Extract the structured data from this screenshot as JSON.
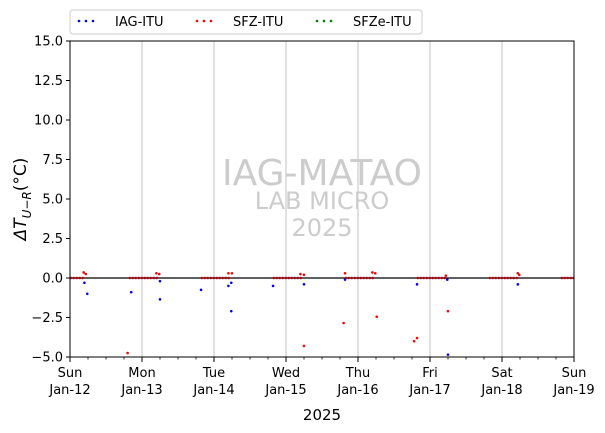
{
  "chart_data": {
    "type": "scatter",
    "xlabel": "2025",
    "ylabel": "ΔT",
    "ylabel_subscript": "U−R",
    "ylabel_unit": "(°C)",
    "ylim": [
      -5.0,
      15.0
    ],
    "xlim": [
      "2025-01-12",
      "2025-01-19"
    ],
    "yticks": [
      "−5.0",
      "−2.5",
      "0.0",
      "2.5",
      "5.0",
      "7.5",
      "10.0",
      "12.5",
      "15.0"
    ],
    "xticks": [
      {
        "day": "Sun",
        "date": "Jan-12"
      },
      {
        "day": "Mon",
        "date": "Jan-13"
      },
      {
        "day": "Tue",
        "date": "Jan-14"
      },
      {
        "day": "Wed",
        "date": "Jan-15"
      },
      {
        "day": "Thu",
        "date": "Jan-16"
      },
      {
        "day": "Fri",
        "date": "Jan-17"
      },
      {
        "day": "Sat",
        "date": "Jan-18"
      },
      {
        "day": "Sun",
        "date": "Jan-19"
      }
    ],
    "grid": "vertical at day boundaries",
    "zero_line": true,
    "legend_position": "top, above plot",
    "watermark": [
      "IAG-MATAO",
      "LAB MICRO",
      "2025"
    ],
    "series": [
      {
        "name": "IAG-ITU",
        "color": "#0000ff",
        "segments": [
          [
            0.0,
            0.2
          ],
          [
            0.82,
            1.22
          ],
          [
            1.82,
            2.22
          ],
          [
            2.82,
            3.22
          ],
          [
            3.82,
            4.22
          ],
          [
            4.82,
            5.22
          ],
          [
            5.82,
            6.22
          ],
          [
            6.82,
            7.0
          ]
        ],
        "points": [
          [
            0.2,
            -0.3
          ],
          [
            0.24,
            -1.0
          ],
          [
            0.85,
            -0.9
          ],
          [
            1.25,
            -0.2
          ],
          [
            1.25,
            -1.35
          ],
          [
            1.82,
            -0.75
          ],
          [
            2.2,
            -0.5
          ],
          [
            2.24,
            -0.3
          ],
          [
            2.24,
            -2.1
          ],
          [
            2.82,
            -0.5
          ],
          [
            3.25,
            -0.4
          ],
          [
            3.82,
            -0.1
          ],
          [
            4.82,
            -0.4
          ],
          [
            5.24,
            -0.1
          ],
          [
            5.25,
            -4.85
          ],
          [
            6.22,
            -0.4
          ]
        ]
      },
      {
        "name": "SFZ-ITU",
        "color": "#ff0000",
        "segments": [
          [
            0.0,
            0.2
          ],
          [
            0.82,
            1.22
          ],
          [
            1.82,
            2.22
          ],
          [
            2.82,
            3.22
          ],
          [
            3.82,
            4.22
          ],
          [
            4.82,
            5.22
          ],
          [
            5.82,
            6.22
          ],
          [
            6.82,
            7.0
          ]
        ],
        "points": [
          [
            0.19,
            0.35
          ],
          [
            0.22,
            0.25
          ],
          [
            0.8,
            -4.75
          ],
          [
            1.2,
            0.3
          ],
          [
            1.24,
            0.25
          ],
          [
            2.2,
            0.3
          ],
          [
            2.25,
            0.3
          ],
          [
            3.2,
            0.25
          ],
          [
            3.25,
            0.2
          ],
          [
            3.25,
            -4.3
          ],
          [
            3.8,
            -2.85
          ],
          [
            3.82,
            0.3
          ],
          [
            4.2,
            0.35
          ],
          [
            4.24,
            0.3
          ],
          [
            4.26,
            -2.45
          ],
          [
            4.78,
            -4.0
          ],
          [
            4.82,
            -3.8
          ],
          [
            5.22,
            0.15
          ],
          [
            5.25,
            -2.1
          ],
          [
            6.22,
            0.3
          ],
          [
            6.24,
            0.2
          ]
        ]
      },
      {
        "name": "SFZe-ITU",
        "color": "#008000",
        "segments": [],
        "points": []
      }
    ]
  }
}
